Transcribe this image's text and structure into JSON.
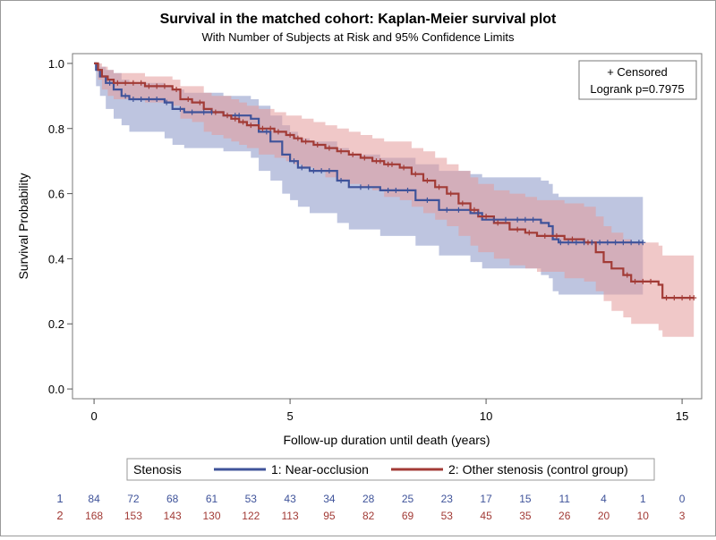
{
  "chart_data": {
    "type": "line",
    "title": "Survival in the matched cohort: Kaplan-Meier survival plot",
    "subtitle": "With Number of Subjects at Risk and 95% Confidence Limits",
    "xlabel": "Follow-up duration until death (years)",
    "ylabel": "Survival Probability",
    "xlim": [
      -0.55,
      15.5
    ],
    "ylim": [
      -0.03,
      1.03
    ],
    "x_ticks": [
      0,
      5,
      10,
      15
    ],
    "y_ticks": [
      0.0,
      0.2,
      0.4,
      0.6,
      0.8,
      1.0
    ],
    "y_tick_labels": [
      "0.0",
      "0.2",
      "0.4",
      "0.6",
      "0.8",
      "1.0"
    ],
    "grid": false,
    "inset": {
      "censored_label": "+ Censored",
      "logrank": "Logrank p=0.7975"
    },
    "legend": {
      "title": "Stenosis",
      "position": "bottom"
    },
    "series": [
      {
        "name": "1: Near-occlusion",
        "color": "#3f539a",
        "band_color": "#8896c6",
        "curve": [
          [
            0,
            1.0
          ],
          [
            0.05,
            0.98
          ],
          [
            0.15,
            0.96
          ],
          [
            0.3,
            0.94
          ],
          [
            0.5,
            0.92
          ],
          [
            0.7,
            0.9
          ],
          [
            0.9,
            0.89
          ],
          [
            1.8,
            0.88
          ],
          [
            2.0,
            0.86
          ],
          [
            2.3,
            0.85
          ],
          [
            3.3,
            0.84
          ],
          [
            4.0,
            0.83
          ],
          [
            4.2,
            0.79
          ],
          [
            4.5,
            0.76
          ],
          [
            4.8,
            0.72
          ],
          [
            5.0,
            0.7
          ],
          [
            5.2,
            0.68
          ],
          [
            5.5,
            0.67
          ],
          [
            6.2,
            0.64
          ],
          [
            6.5,
            0.62
          ],
          [
            7.3,
            0.61
          ],
          [
            8.2,
            0.58
          ],
          [
            8.8,
            0.55
          ],
          [
            9.6,
            0.54
          ],
          [
            9.9,
            0.52
          ],
          [
            11.4,
            0.51
          ],
          [
            11.6,
            0.5
          ],
          [
            11.7,
            0.46
          ],
          [
            11.85,
            0.45
          ],
          [
            14.0,
            0.45
          ]
        ],
        "lower": [
          [
            0,
            1.0
          ],
          [
            0.05,
            0.93
          ],
          [
            0.15,
            0.9
          ],
          [
            0.3,
            0.86
          ],
          [
            0.5,
            0.83
          ],
          [
            0.7,
            0.81
          ],
          [
            0.9,
            0.79
          ],
          [
            1.8,
            0.77
          ],
          [
            2.0,
            0.75
          ],
          [
            2.3,
            0.74
          ],
          [
            3.3,
            0.73
          ],
          [
            4.0,
            0.71
          ],
          [
            4.2,
            0.67
          ],
          [
            4.5,
            0.64
          ],
          [
            4.8,
            0.6
          ],
          [
            5.0,
            0.58
          ],
          [
            5.2,
            0.56
          ],
          [
            5.5,
            0.54
          ],
          [
            6.2,
            0.51
          ],
          [
            6.5,
            0.49
          ],
          [
            7.3,
            0.47
          ],
          [
            8.2,
            0.44
          ],
          [
            8.8,
            0.41
          ],
          [
            9.6,
            0.39
          ],
          [
            9.9,
            0.37
          ],
          [
            11.4,
            0.35
          ],
          [
            11.6,
            0.34
          ],
          [
            11.7,
            0.3
          ],
          [
            11.85,
            0.29
          ],
          [
            14.0,
            0.29
          ]
        ],
        "upper": [
          [
            0,
            1.0
          ],
          [
            0.05,
            1.0
          ],
          [
            0.15,
            0.99
          ],
          [
            0.3,
            0.98
          ],
          [
            0.5,
            0.97
          ],
          [
            0.7,
            0.95
          ],
          [
            0.9,
            0.94
          ],
          [
            1.8,
            0.93
          ],
          [
            2.0,
            0.92
          ],
          [
            2.3,
            0.91
          ],
          [
            3.3,
            0.9
          ],
          [
            4.0,
            0.89
          ],
          [
            4.2,
            0.87
          ],
          [
            4.5,
            0.84
          ],
          [
            4.8,
            0.81
          ],
          [
            5.0,
            0.79
          ],
          [
            5.2,
            0.77
          ],
          [
            5.5,
            0.76
          ],
          [
            6.2,
            0.74
          ],
          [
            6.5,
            0.72
          ],
          [
            7.3,
            0.71
          ],
          [
            8.2,
            0.69
          ],
          [
            8.8,
            0.67
          ],
          [
            9.6,
            0.66
          ],
          [
            9.9,
            0.65
          ],
          [
            11.4,
            0.64
          ],
          [
            11.6,
            0.63
          ],
          [
            11.7,
            0.6
          ],
          [
            11.85,
            0.59
          ],
          [
            14.0,
            0.59
          ]
        ],
        "censored_x": [
          0.4,
          0.8,
          1.0,
          1.2,
          1.4,
          1.6,
          1.85,
          2.2,
          2.5,
          2.8,
          3.0,
          3.6,
          3.7,
          4.4,
          5.1,
          5.3,
          5.6,
          5.8,
          6.0,
          6.3,
          6.8,
          7.0,
          7.5,
          7.7,
          8.0,
          8.5,
          9.0,
          9.3,
          9.8,
          10.2,
          10.5,
          10.8,
          11.0,
          11.2,
          11.9,
          12.1,
          12.3,
          12.5,
          12.7,
          12.9,
          13.1,
          13.3,
          13.5,
          13.7,
          13.9,
          14.0
        ],
        "at_risk": [
          84,
          72,
          68,
          61,
          53,
          43,
          34,
          28,
          25,
          23,
          17,
          15,
          11,
          4,
          1,
          0
        ]
      },
      {
        "name": "2: Other stenosis (control group)",
        "color": "#a23b36",
        "band_color": "#e39a9a",
        "curve": [
          [
            0,
            1.0
          ],
          [
            0.1,
            0.98
          ],
          [
            0.2,
            0.96
          ],
          [
            0.35,
            0.95
          ],
          [
            0.5,
            0.94
          ],
          [
            1.3,
            0.93
          ],
          [
            2.0,
            0.92
          ],
          [
            2.2,
            0.89
          ],
          [
            2.5,
            0.88
          ],
          [
            2.8,
            0.86
          ],
          [
            3.0,
            0.85
          ],
          [
            3.3,
            0.84
          ],
          [
            3.5,
            0.83
          ],
          [
            3.7,
            0.82
          ],
          [
            3.9,
            0.81
          ],
          [
            4.2,
            0.8
          ],
          [
            4.6,
            0.79
          ],
          [
            4.9,
            0.78
          ],
          [
            5.1,
            0.77
          ],
          [
            5.3,
            0.76
          ],
          [
            5.6,
            0.75
          ],
          [
            5.9,
            0.74
          ],
          [
            6.2,
            0.73
          ],
          [
            6.5,
            0.72
          ],
          [
            6.8,
            0.71
          ],
          [
            7.1,
            0.7
          ],
          [
            7.4,
            0.69
          ],
          [
            7.8,
            0.68
          ],
          [
            8.1,
            0.66
          ],
          [
            8.4,
            0.64
          ],
          [
            8.7,
            0.62
          ],
          [
            9.0,
            0.6
          ],
          [
            9.3,
            0.57
          ],
          [
            9.6,
            0.55
          ],
          [
            9.8,
            0.53
          ],
          [
            10.2,
            0.51
          ],
          [
            10.6,
            0.49
          ],
          [
            11.0,
            0.48
          ],
          [
            11.3,
            0.47
          ],
          [
            11.6,
            0.47
          ],
          [
            12.0,
            0.46
          ],
          [
            12.5,
            0.45
          ],
          [
            12.8,
            0.42
          ],
          [
            13.0,
            0.39
          ],
          [
            13.2,
            0.37
          ],
          [
            13.5,
            0.35
          ],
          [
            13.7,
            0.33
          ],
          [
            14.4,
            0.32
          ],
          [
            14.5,
            0.28
          ],
          [
            15.3,
            0.28
          ]
        ],
        "lower": [
          [
            0,
            1.0
          ],
          [
            0.1,
            0.95
          ],
          [
            0.2,
            0.92
          ],
          [
            0.35,
            0.9
          ],
          [
            0.5,
            0.89
          ],
          [
            1.3,
            0.88
          ],
          [
            2.0,
            0.87
          ],
          [
            2.2,
            0.83
          ],
          [
            2.5,
            0.82
          ],
          [
            2.8,
            0.79
          ],
          [
            3.0,
            0.78
          ],
          [
            3.3,
            0.77
          ],
          [
            3.5,
            0.76
          ],
          [
            3.7,
            0.75
          ],
          [
            3.9,
            0.74
          ],
          [
            4.2,
            0.72
          ],
          [
            4.6,
            0.71
          ],
          [
            4.9,
            0.7
          ],
          [
            5.1,
            0.69
          ],
          [
            5.3,
            0.68
          ],
          [
            5.6,
            0.67
          ],
          [
            5.9,
            0.65
          ],
          [
            6.2,
            0.64
          ],
          [
            6.5,
            0.63
          ],
          [
            6.8,
            0.62
          ],
          [
            7.1,
            0.61
          ],
          [
            7.4,
            0.59
          ],
          [
            7.8,
            0.58
          ],
          [
            8.1,
            0.56
          ],
          [
            8.4,
            0.54
          ],
          [
            8.7,
            0.52
          ],
          [
            9.0,
            0.5
          ],
          [
            9.3,
            0.47
          ],
          [
            9.6,
            0.44
          ],
          [
            9.8,
            0.42
          ],
          [
            10.2,
            0.4
          ],
          [
            10.6,
            0.38
          ],
          [
            11.0,
            0.37
          ],
          [
            11.3,
            0.36
          ],
          [
            11.6,
            0.36
          ],
          [
            12.0,
            0.34
          ],
          [
            12.5,
            0.33
          ],
          [
            12.8,
            0.3
          ],
          [
            13.0,
            0.27
          ],
          [
            13.2,
            0.24
          ],
          [
            13.5,
            0.22
          ],
          [
            13.7,
            0.2
          ],
          [
            14.4,
            0.18
          ],
          [
            14.5,
            0.16
          ],
          [
            15.3,
            0.16
          ]
        ],
        "upper": [
          [
            0,
            1.0
          ],
          [
            0.1,
            1.0
          ],
          [
            0.2,
            0.99
          ],
          [
            0.35,
            0.98
          ],
          [
            0.5,
            0.97
          ],
          [
            1.3,
            0.96
          ],
          [
            2.0,
            0.95
          ],
          [
            2.2,
            0.93
          ],
          [
            2.5,
            0.93
          ],
          [
            2.8,
            0.91
          ],
          [
            3.0,
            0.9
          ],
          [
            3.3,
            0.9
          ],
          [
            3.5,
            0.89
          ],
          [
            3.7,
            0.88
          ],
          [
            3.9,
            0.87
          ],
          [
            4.2,
            0.86
          ],
          [
            4.6,
            0.85
          ],
          [
            4.9,
            0.84
          ],
          [
            5.1,
            0.84
          ],
          [
            5.3,
            0.83
          ],
          [
            5.6,
            0.82
          ],
          [
            5.9,
            0.81
          ],
          [
            6.2,
            0.8
          ],
          [
            6.5,
            0.79
          ],
          [
            6.8,
            0.78
          ],
          [
            7.1,
            0.77
          ],
          [
            7.4,
            0.76
          ],
          [
            7.8,
            0.76
          ],
          [
            8.1,
            0.74
          ],
          [
            8.4,
            0.73
          ],
          [
            8.7,
            0.71
          ],
          [
            9.0,
            0.69
          ],
          [
            9.3,
            0.67
          ],
          [
            9.6,
            0.65
          ],
          [
            9.8,
            0.63
          ],
          [
            10.2,
            0.61
          ],
          [
            10.6,
            0.6
          ],
          [
            11.0,
            0.59
          ],
          [
            11.3,
            0.58
          ],
          [
            11.6,
            0.58
          ],
          [
            12.0,
            0.57
          ],
          [
            12.5,
            0.56
          ],
          [
            12.8,
            0.53
          ],
          [
            13.0,
            0.5
          ],
          [
            13.2,
            0.48
          ],
          [
            13.5,
            0.46
          ],
          [
            13.7,
            0.45
          ],
          [
            14.4,
            0.44
          ],
          [
            14.5,
            0.41
          ],
          [
            15.3,
            0.41
          ]
        ],
        "censored_x": [
          0.6,
          0.8,
          1.0,
          1.2,
          1.4,
          1.6,
          1.8,
          2.1,
          2.4,
          2.7,
          3.1,
          3.4,
          3.6,
          3.8,
          4.0,
          4.3,
          4.5,
          4.7,
          5.0,
          5.2,
          5.4,
          5.7,
          6.0,
          6.3,
          6.6,
          6.9,
          7.2,
          7.3,
          7.5,
          7.6,
          7.9,
          8.2,
          8.5,
          8.8,
          9.1,
          9.4,
          9.7,
          10.0,
          10.3,
          10.8,
          11.1,
          11.5,
          11.8,
          12.2,
          12.6,
          13.6,
          13.8,
          14.0,
          14.2,
          14.6,
          14.8,
          15.0,
          15.2,
          15.3
        ],
        "at_risk": [
          168,
          153,
          143,
          130,
          122,
          113,
          95,
          82,
          69,
          53,
          45,
          35,
          26,
          20,
          10,
          3
        ]
      }
    ],
    "at_risk_times": [
      0,
      1,
      2,
      3,
      4,
      5,
      6,
      7,
      8,
      9,
      10,
      11,
      12,
      13,
      14,
      15
    ],
    "at_risk_row_labels": [
      "1",
      "2"
    ]
  }
}
